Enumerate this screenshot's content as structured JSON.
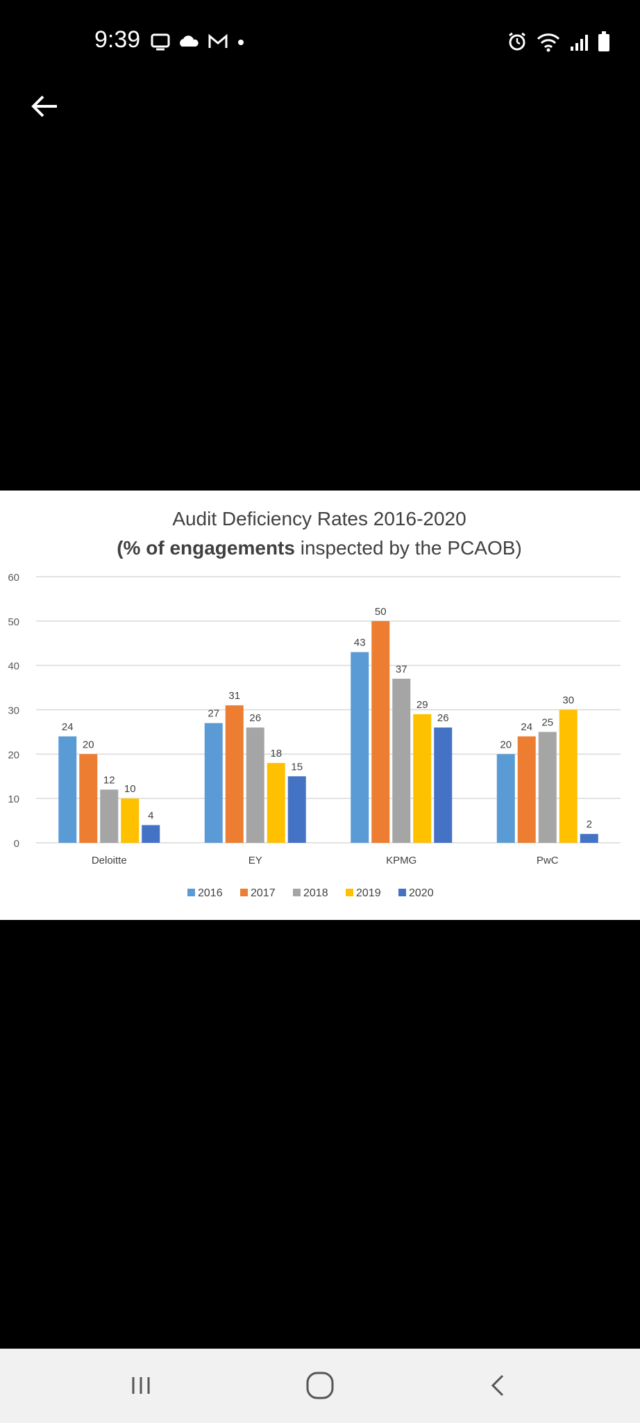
{
  "status_bar": {
    "time": "9:39",
    "left_icons": [
      "screen-cast-icon",
      "cloud-icon",
      "gmail-icon",
      "notification-dot-icon"
    ],
    "right_icons": [
      "alarm-icon",
      "wifi-icon",
      "signal-icon",
      "battery-icon"
    ]
  },
  "toolbar": {
    "back_icon": "arrow-left-icon"
  },
  "chart_data": {
    "type": "bar",
    "title": "Audit Deficiency Rates 2016-2020",
    "subtitle_bold": "(% of engagements",
    "subtitle_rest": " inspected by the PCAOB)",
    "categories": [
      "Deloitte",
      "EY",
      "KPMG",
      "PwC"
    ],
    "series": [
      {
        "name": "2016",
        "color": "#5b9bd5",
        "values": [
          24,
          27,
          43,
          20
        ]
      },
      {
        "name": "2017",
        "color": "#ed7d31",
        "values": [
          20,
          31,
          50,
          24
        ]
      },
      {
        "name": "2018",
        "color": "#a5a5a5",
        "values": [
          12,
          26,
          37,
          25
        ]
      },
      {
        "name": "2019",
        "color": "#ffc000",
        "values": [
          10,
          18,
          29,
          30
        ]
      },
      {
        "name": "2020",
        "color": "#4472c4",
        "values": [
          4,
          15,
          26,
          2
        ]
      }
    ],
    "ylim": [
      0,
      60
    ],
    "yticks": [
      "0",
      "10",
      "20",
      "30",
      "40",
      "50",
      "60"
    ],
    "grid": true,
    "legend_position": "bottom"
  },
  "nav_bar": {
    "recents_icon": "recent-apps-icon",
    "home_icon": "home-icon",
    "back_icon": "nav-back-icon"
  }
}
